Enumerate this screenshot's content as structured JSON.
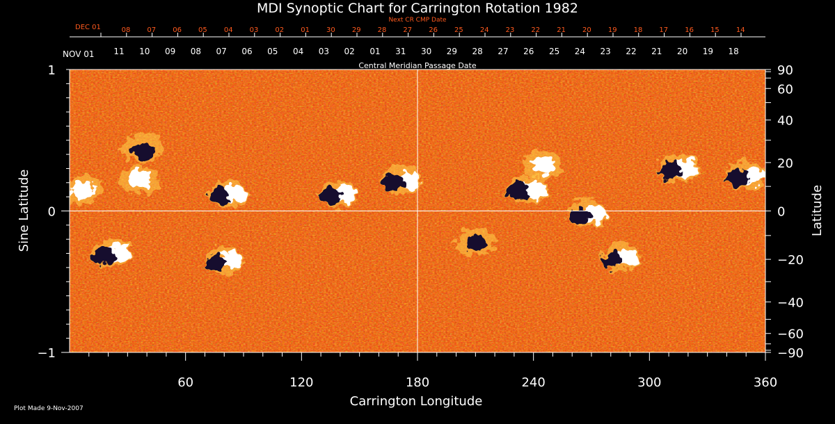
{
  "chart_data": {
    "type": "heatmap",
    "title": "MDI Synoptic Chart for Carrington Rotation 1982",
    "xlabel": "Carrington Longitude",
    "ylabel_left": "Sine Latitude",
    "ylabel_right": "Latitude",
    "xlim": [
      0,
      360
    ],
    "ylim": [
      -1,
      1
    ],
    "x_ticks": [
      60,
      120,
      180,
      240,
      300,
      360
    ],
    "y_ticks_left": [
      -1,
      0,
      1
    ],
    "y_ticks_right_deg": [
      90,
      60,
      40,
      20,
      0,
      -20,
      -40,
      -60,
      -90
    ],
    "grid": {
      "equator_line": true,
      "central_meridian_line_at": 180
    },
    "top_axis": {
      "label": "Central Meridian Passage Date",
      "start_label": "NOV 01",
      "dates": [
        "11",
        "10",
        "09",
        "08",
        "07",
        "06",
        "05",
        "04",
        "03",
        "02",
        "01",
        "31",
        "30",
        "29",
        "28",
        "27",
        "26",
        "25",
        "24",
        "23",
        "22",
        "21",
        "20",
        "19",
        "18"
      ]
    },
    "next_cr_axis": {
      "label": "Next CR CMP Date",
      "start_label": "DEC 01",
      "dates": [
        "08",
        "07",
        "06",
        "05",
        "04",
        "03",
        "02",
        "01",
        "30",
        "29",
        "28",
        "27",
        "26",
        "25",
        "24",
        "23",
        "22",
        "21",
        "20",
        "19",
        "18",
        "17",
        "16",
        "15",
        "14"
      ]
    },
    "colormap": [
      "#1a0c3c",
      "#c81e00",
      "#ff6a10",
      "#ffd05a",
      "#ffffff"
    ],
    "active_regions": [
      {
        "lon": 6,
        "sinlat": 0.15,
        "polarity": "positive"
      },
      {
        "lon": 38,
        "sinlat": 0.44,
        "polarity": "negative"
      },
      {
        "lon": 36,
        "sinlat": 0.22,
        "polarity": "positive"
      },
      {
        "lon": 82,
        "sinlat": 0.12,
        "polarity": "mixed"
      },
      {
        "lon": 139,
        "sinlat": 0.12,
        "polarity": "mixed"
      },
      {
        "lon": 172,
        "sinlat": 0.22,
        "polarity": "mixed"
      },
      {
        "lon": 237,
        "sinlat": 0.15,
        "polarity": "mixed"
      },
      {
        "lon": 245,
        "sinlat": 0.32,
        "polarity": "positive"
      },
      {
        "lon": 315,
        "sinlat": 0.3,
        "polarity": "mixed"
      },
      {
        "lon": 350,
        "sinlat": 0.25,
        "polarity": "mixed"
      },
      {
        "lon": 22,
        "sinlat": -0.3,
        "polarity": "mixed"
      },
      {
        "lon": 80,
        "sinlat": -0.35,
        "polarity": "mixed"
      },
      {
        "lon": 268,
        "sinlat": -0.02,
        "polarity": "mixed"
      },
      {
        "lon": 285,
        "sinlat": -0.33,
        "polarity": "mixed"
      },
      {
        "lon": 210,
        "sinlat": -0.22,
        "polarity": "negative"
      }
    ]
  },
  "footer": {
    "plot_made": "Plot Made  9-Nov-2007"
  }
}
